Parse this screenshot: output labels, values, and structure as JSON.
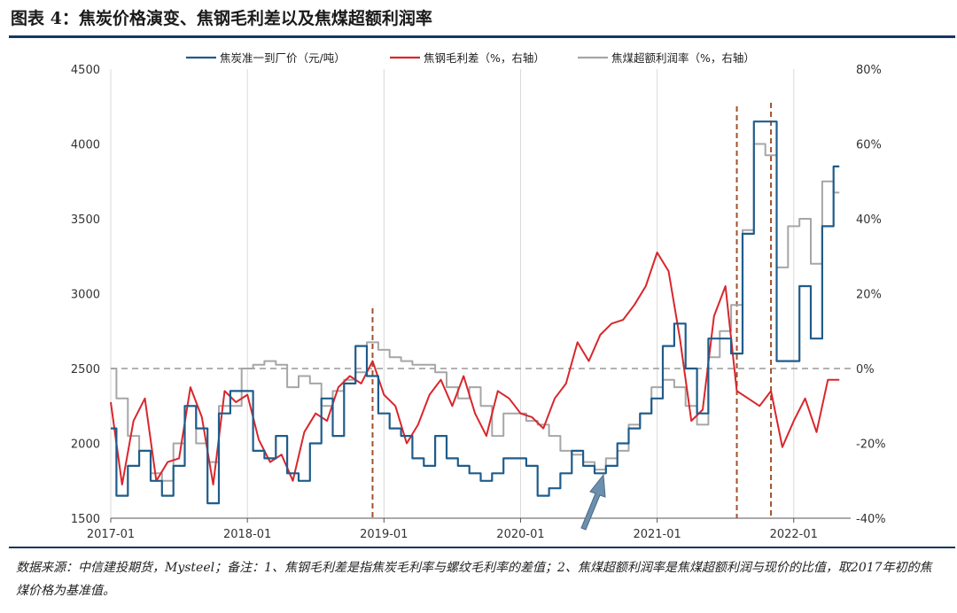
{
  "title": "图表 4：焦炭价格演变、焦钢毛利差以及焦煤超额利润率",
  "note": "数据来源：中信建投期货，Mysteel；备注：1、焦钢毛利差是指焦炭毛利率与螺纹毛利率的差值；2、焦煤超额利润率是焦煤超额利润与现价的比值，取2017年初的焦煤价格为基准值。",
  "colors": {
    "coke": "#1f5c8b",
    "spread": "#d9262c",
    "coal": "#a6a6a6",
    "vline": "#a0522d",
    "arrow": "#6d8fae"
  },
  "chart_data": {
    "type": "line",
    "title": "图表 4：焦炭价格演变、焦钢毛利差以及焦煤超额利润率",
    "x_ticks": [
      "2017-01",
      "2018-01",
      "2019-01",
      "2020-01",
      "2021-01",
      "2022-01"
    ],
    "x_range": [
      "2017-01",
      "2022-05"
    ],
    "y_left": {
      "label": "",
      "range": [
        1500,
        4500
      ],
      "ticks": [
        "4500",
        "4000",
        "3500",
        "3000",
        "2500",
        "2000",
        "1500"
      ]
    },
    "y_right": {
      "label": "",
      "range": [
        -40,
        80
      ],
      "ticks": [
        "80%",
        "60%",
        "40%",
        "20%",
        "0%",
        "-20%",
        "-40%"
      ]
    },
    "legend_position": "top-center",
    "grid": "vertical",
    "reference_line": {
      "axis": "right",
      "value": 0,
      "style": "dashed"
    },
    "vertical_markers": [
      "2018-12",
      "2021-08",
      "2021-11"
    ],
    "series": [
      {
        "name": "焦炭准一到厂价（元/吨）",
        "axis": "left",
        "x": [
          "2017-01",
          "2017-02",
          "2017-03",
          "2017-04",
          "2017-05",
          "2017-06",
          "2017-07",
          "2017-08",
          "2017-09",
          "2017-10",
          "2017-11",
          "2017-12",
          "2018-01",
          "2018-02",
          "2018-03",
          "2018-04",
          "2018-05",
          "2018-06",
          "2018-07",
          "2018-08",
          "2018-09",
          "2018-10",
          "2018-11",
          "2018-12",
          "2019-01",
          "2019-02",
          "2019-03",
          "2019-04",
          "2019-05",
          "2019-06",
          "2019-07",
          "2019-08",
          "2019-09",
          "2019-10",
          "2019-11",
          "2019-12",
          "2020-01",
          "2020-02",
          "2020-03",
          "2020-04",
          "2020-05",
          "2020-06",
          "2020-07",
          "2020-08",
          "2020-09",
          "2020-10",
          "2020-11",
          "2020-12",
          "2021-01",
          "2021-02",
          "2021-03",
          "2021-04",
          "2021-05",
          "2021-06",
          "2021-07",
          "2021-08",
          "2021-09",
          "2021-10",
          "2021-11",
          "2021-12",
          "2022-01",
          "2022-02",
          "2022-03",
          "2022-04",
          "2022-05"
        ],
        "y": [
          2100,
          1650,
          1850,
          1950,
          1750,
          1650,
          1850,
          2250,
          2100,
          1600,
          2200,
          2350,
          2350,
          1950,
          1900,
          2050,
          1800,
          1750,
          2000,
          2300,
          2050,
          2400,
          2650,
          2450,
          2200,
          2100,
          2050,
          1900,
          1850,
          2050,
          1900,
          1850,
          1800,
          1750,
          1800,
          1900,
          1900,
          1850,
          1650,
          1700,
          1800,
          1950,
          1850,
          1800,
          1850,
          2000,
          2100,
          2200,
          2300,
          2650,
          2800,
          2500,
          2200,
          2700,
          2700,
          2600,
          3400,
          4150,
          4150,
          2550,
          2550,
          3050,
          2700,
          3450,
          3850
        ]
      },
      {
        "name": "焦钢毛利差（%，右轴）",
        "axis": "right",
        "x": [
          "2017-01",
          "2017-02",
          "2017-03",
          "2017-04",
          "2017-05",
          "2017-06",
          "2017-07",
          "2017-08",
          "2017-09",
          "2017-10",
          "2017-11",
          "2017-12",
          "2018-01",
          "2018-02",
          "2018-03",
          "2018-04",
          "2018-05",
          "2018-06",
          "2018-07",
          "2018-08",
          "2018-09",
          "2018-10",
          "2018-11",
          "2018-12",
          "2019-01",
          "2019-02",
          "2019-03",
          "2019-04",
          "2019-05",
          "2019-06",
          "2019-07",
          "2019-08",
          "2019-09",
          "2019-10",
          "2019-11",
          "2019-12",
          "2020-01",
          "2020-02",
          "2020-03",
          "2020-04",
          "2020-05",
          "2020-06",
          "2020-07",
          "2020-08",
          "2020-09",
          "2020-10",
          "2020-11",
          "2020-12",
          "2021-01",
          "2021-02",
          "2021-03",
          "2021-04",
          "2021-05",
          "2021-06",
          "2021-07",
          "2021-08",
          "2021-09",
          "2021-10",
          "2021-11",
          "2021-12",
          "2022-01",
          "2022-02",
          "2022-03",
          "2022-04",
          "2022-05"
        ],
        "y": [
          -9,
          -31,
          -14,
          -8,
          -30,
          -25,
          -24,
          -5,
          -13,
          -31,
          -6,
          -9,
          -7,
          -19,
          -25,
          -23,
          -30,
          -17,
          -12,
          -14,
          -5,
          -2,
          -4,
          2,
          -7,
          -10,
          -20,
          -15,
          -7,
          -3,
          -10,
          -2,
          -12,
          -18,
          -6,
          -8,
          -12,
          -13,
          -16,
          -8,
          -4,
          7,
          2,
          9,
          12,
          13,
          17,
          22,
          31,
          26,
          8,
          -14,
          -11,
          14,
          22,
          -6,
          -8,
          -10,
          -6,
          -21,
          -14,
          -8,
          -17,
          -3,
          -3
        ]
      },
      {
        "name": "焦煤超额利润率（%，右轴）",
        "axis": "right",
        "x": [
          "2017-01",
          "2017-02",
          "2017-03",
          "2017-04",
          "2017-05",
          "2017-06",
          "2017-07",
          "2017-08",
          "2017-09",
          "2017-10",
          "2017-11",
          "2017-12",
          "2018-01",
          "2018-02",
          "2018-03",
          "2018-04",
          "2018-05",
          "2018-06",
          "2018-07",
          "2018-08",
          "2018-09",
          "2018-10",
          "2018-11",
          "2018-12",
          "2019-01",
          "2019-02",
          "2019-03",
          "2019-04",
          "2019-05",
          "2019-06",
          "2019-07",
          "2019-08",
          "2019-09",
          "2019-10",
          "2019-11",
          "2019-12",
          "2020-01",
          "2020-02",
          "2020-03",
          "2020-04",
          "2020-05",
          "2020-06",
          "2020-07",
          "2020-08",
          "2020-09",
          "2020-10",
          "2020-11",
          "2020-12",
          "2021-01",
          "2021-02",
          "2021-03",
          "2021-04",
          "2021-05",
          "2021-06",
          "2021-07",
          "2021-08",
          "2021-09",
          "2021-10",
          "2021-11",
          "2021-12",
          "2022-01",
          "2022-02",
          "2022-03",
          "2022-04",
          "2022-05"
        ],
        "y": [
          0,
          -8,
          -18,
          -22,
          -28,
          -30,
          -20,
          -10,
          -20,
          -25,
          -10,
          -10,
          0,
          1,
          2,
          1,
          -5,
          -2,
          -4,
          -10,
          -6,
          -3,
          -1,
          7,
          5,
          3,
          2,
          1,
          1,
          -1,
          -5,
          -8,
          -5,
          -10,
          -18,
          -12,
          -12,
          -14,
          -15,
          -18,
          -22,
          -23,
          -25,
          -27,
          -24,
          -22,
          -15,
          -12,
          -5,
          -3,
          -5,
          -10,
          -15,
          3,
          10,
          17,
          37,
          60,
          57,
          27,
          38,
          40,
          28,
          50,
          47
        ]
      }
    ]
  }
}
